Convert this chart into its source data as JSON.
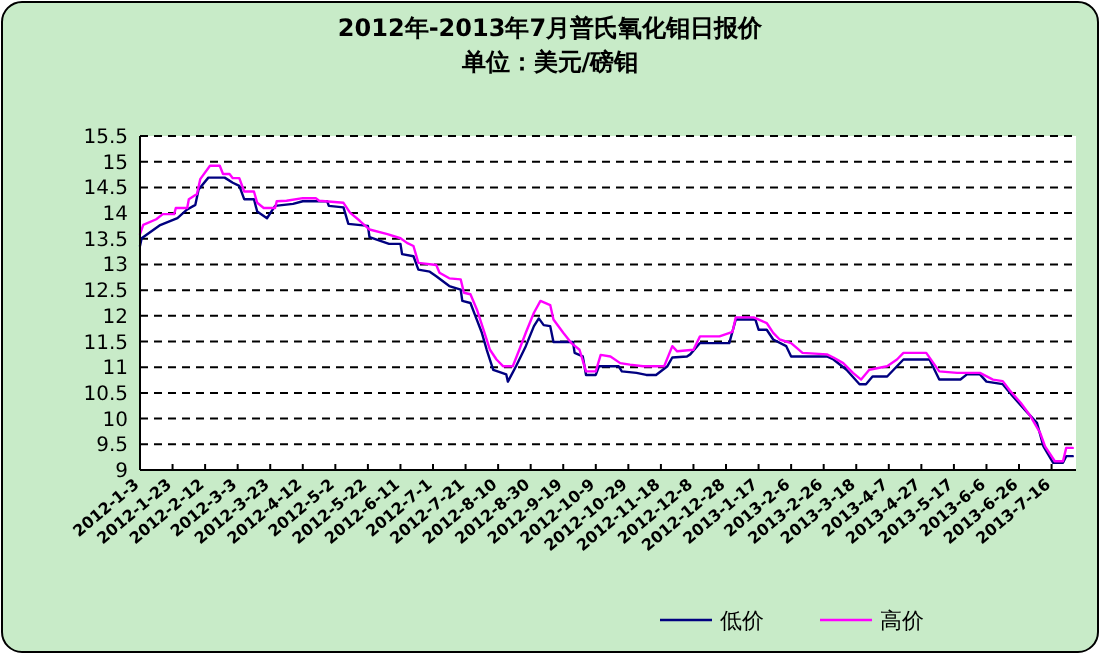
{
  "chart_data": {
    "type": "line",
    "title": "2012年-2013年7月普氏氧化钼日报价",
    "subtitle": "单位：美元/磅钼",
    "xlim": [
      "2012-01-03",
      "2013-07-31"
    ],
    "xticks": [
      {
        "value": "2012-01-03",
        "label": "2012-1-3"
      },
      {
        "value": "2012-01-23",
        "label": "2012-1-23"
      },
      {
        "value": "2012-02-12",
        "label": "2012-2-12"
      },
      {
        "value": "2012-03-03",
        "label": "2012-3-3"
      },
      {
        "value": "2012-03-23",
        "label": "2012-3-23"
      },
      {
        "value": "2012-04-12",
        "label": "2012-4-12"
      },
      {
        "value": "2012-05-02",
        "label": "2012-5-2"
      },
      {
        "value": "2012-05-22",
        "label": "2012-5-22"
      },
      {
        "value": "2012-06-11",
        "label": "2012-6-11"
      },
      {
        "value": "2012-07-01",
        "label": "2012-7-1"
      },
      {
        "value": "2012-07-21",
        "label": "2012-7-21"
      },
      {
        "value": "2012-08-10",
        "label": "2012-8-10"
      },
      {
        "value": "2012-08-30",
        "label": "2012-8-30"
      },
      {
        "value": "2012-09-19",
        "label": "2012-9-19"
      },
      {
        "value": "2012-10-09",
        "label": "2012-10-9"
      },
      {
        "value": "2012-10-29",
        "label": "2012-10-29"
      },
      {
        "value": "2012-11-18",
        "label": "2012-11-18"
      },
      {
        "value": "2012-12-08",
        "label": "2012-12-8"
      },
      {
        "value": "2012-12-28",
        "label": "2012-12-28"
      },
      {
        "value": "2013-01-17",
        "label": "2013-1-17"
      },
      {
        "value": "2013-02-06",
        "label": "2013-2-6"
      },
      {
        "value": "2013-02-26",
        "label": "2013-2-26"
      },
      {
        "value": "2013-03-18",
        "label": "2013-3-18"
      },
      {
        "value": "2013-04-07",
        "label": "2013-4-7"
      },
      {
        "value": "2013-04-27",
        "label": "2013-4-27"
      },
      {
        "value": "2013-05-17",
        "label": "2013-5-17"
      },
      {
        "value": "2013-06-06",
        "label": "2013-6-6"
      },
      {
        "value": "2013-06-26",
        "label": "2013-6-26"
      },
      {
        "value": "2013-07-16",
        "label": "2013-7-16"
      }
    ],
    "ylim": [
      9,
      15.5
    ],
    "yticks": [
      9,
      9.5,
      10,
      10.5,
      11,
      11.5,
      12,
      12.5,
      13,
      13.5,
      14,
      14.5,
      15,
      15.5
    ],
    "grid": "y",
    "legend": "bottom",
    "marker": "none",
    "line_style": "solid",
    "series": [
      {
        "name": "低价",
        "color": "#000080",
        "x": [
          "2012-01-03",
          "2012-01-04",
          "2012-01-15",
          "2012-01-26",
          "2012-02-01",
          "2012-02-06",
          "2012-02-08",
          "2012-02-14",
          "2012-02-24",
          "2012-02-29",
          "2012-03-04",
          "2012-03-07",
          "2012-03-13",
          "2012-03-15",
          "2012-03-21",
          "2012-03-26",
          "2012-04-06",
          "2012-04-12",
          "2012-04-27",
          "2012-04-28",
          "2012-05-07",
          "2012-05-10",
          "2012-05-22",
          "2012-05-23",
          "2012-06-04",
          "2012-06-11",
          "2012-06-12",
          "2012-06-19",
          "2012-06-22",
          "2012-06-29",
          "2012-07-03",
          "2012-07-11",
          "2012-07-18",
          "2012-07-19",
          "2012-07-24",
          "2012-07-27",
          "2012-07-31",
          "2012-08-03",
          "2012-08-07",
          "2012-08-15",
          "2012-08-16",
          "2012-08-21",
          "2012-08-27",
          "2012-09-01",
          "2012-09-04",
          "2012-09-07",
          "2012-09-11",
          "2012-09-13",
          "2012-09-25",
          "2012-09-26",
          "2012-10-01",
          "2012-10-03",
          "2012-10-09",
          "2012-10-11",
          "2012-10-23",
          "2012-10-25",
          "2012-11-03",
          "2012-11-09",
          "2012-11-15",
          "2012-11-22",
          "2012-11-25",
          "2012-12-04",
          "2012-12-06",
          "2012-12-12",
          "2012-12-30",
          "2013-01-03",
          "2013-01-15",
          "2013-01-17",
          "2013-01-22",
          "2013-01-26",
          "2013-02-03",
          "2013-02-06",
          "2013-02-28",
          "2013-03-04",
          "2013-03-12",
          "2013-03-20",
          "2013-03-24",
          "2013-03-28",
          "2013-04-06",
          "2013-04-12",
          "2013-04-16",
          "2013-05-02",
          "2013-05-08",
          "2013-05-21",
          "2013-05-25",
          "2013-06-02",
          "2013-06-06",
          "2013-06-16",
          "2013-06-22",
          "2013-07-01",
          "2013-07-07",
          "2013-07-11",
          "2013-07-17",
          "2013-07-23",
          "2013-07-25",
          "2013-07-29"
        ],
        "values": [
          13.36,
          13.51,
          13.76,
          13.9,
          14.07,
          14.16,
          14.46,
          14.69,
          14.69,
          14.59,
          14.53,
          14.27,
          14.27,
          14.03,
          13.9,
          14.14,
          14.18,
          14.23,
          14.23,
          14.14,
          14.11,
          13.79,
          13.75,
          13.53,
          13.4,
          13.4,
          13.2,
          13.16,
          12.9,
          12.86,
          12.77,
          12.58,
          12.51,
          12.29,
          12.25,
          12.0,
          11.67,
          11.34,
          10.95,
          10.86,
          10.72,
          11.02,
          11.41,
          11.8,
          11.95,
          11.82,
          11.8,
          11.49,
          11.49,
          11.28,
          11.21,
          10.85,
          10.85,
          11.02,
          11.02,
          10.92,
          10.89,
          10.85,
          10.85,
          11.02,
          11.19,
          11.21,
          11.25,
          11.47,
          11.47,
          11.93,
          11.93,
          11.73,
          11.73,
          11.54,
          11.41,
          11.21,
          11.21,
          11.15,
          10.95,
          10.67,
          10.67,
          10.82,
          10.82,
          11.02,
          11.15,
          11.15,
          10.76,
          10.76,
          10.86,
          10.86,
          10.72,
          10.67,
          10.44,
          10.12,
          9.92,
          9.46,
          9.14,
          9.14,
          9.27,
          9.27
        ]
      },
      {
        "name": "高价",
        "color": "#ff00ff",
        "x": [
          "2012-01-03",
          "2012-01-05",
          "2012-01-13",
          "2012-01-17",
          "2012-01-24",
          "2012-01-25",
          "2012-02-01",
          "2012-02-02",
          "2012-02-07",
          "2012-02-09",
          "2012-02-15",
          "2012-02-21",
          "2012-02-23",
          "2012-02-27",
          "2012-02-29",
          "2012-03-04",
          "2012-03-07",
          "2012-03-13",
          "2012-03-15",
          "2012-03-19",
          "2012-03-26",
          "2012-03-27",
          "2012-04-02",
          "2012-04-12",
          "2012-04-20",
          "2012-04-22",
          "2012-05-07",
          "2012-05-11",
          "2012-05-17",
          "2012-05-23",
          "2012-06-03",
          "2012-06-11",
          "2012-06-15",
          "2012-06-19",
          "2012-06-22",
          "2012-07-03",
          "2012-07-05",
          "2012-07-11",
          "2012-07-18",
          "2012-07-20",
          "2012-07-24",
          "2012-07-28",
          "2012-08-01",
          "2012-08-05",
          "2012-08-09",
          "2012-08-13",
          "2012-08-19",
          "2012-08-23",
          "2012-08-27",
          "2012-09-01",
          "2012-09-05",
          "2012-09-11",
          "2012-09-13",
          "2012-09-19",
          "2012-09-24",
          "2012-09-29",
          "2012-10-03",
          "2012-10-09",
          "2012-10-12",
          "2012-10-18",
          "2012-10-24",
          "2012-10-30",
          "2012-11-07",
          "2012-11-20",
          "2012-11-25",
          "2012-11-28",
          "2012-12-08",
          "2012-12-12",
          "2012-12-24",
          "2013-01-01",
          "2013-01-03",
          "2013-01-14",
          "2013-01-22",
          "2013-01-26",
          "2013-01-30",
          "2013-02-06",
          "2013-02-13",
          "2013-02-28",
          "2013-03-04",
          "2013-03-10",
          "2013-03-16",
          "2013-03-21",
          "2013-03-26",
          "2013-04-06",
          "2013-04-12",
          "2013-04-16",
          "2013-04-30",
          "2013-05-08",
          "2013-05-19",
          "2013-06-02",
          "2013-06-10",
          "2013-06-16",
          "2013-06-20",
          "2013-06-27",
          "2013-07-03",
          "2013-07-09",
          "2013-07-12",
          "2013-07-18",
          "2013-07-23",
          "2013-07-25",
          "2013-07-29"
        ],
        "values": [
          13.59,
          13.77,
          13.88,
          13.98,
          13.98,
          14.1,
          14.1,
          14.27,
          14.37,
          14.66,
          14.92,
          14.92,
          14.76,
          14.76,
          14.68,
          14.68,
          14.42,
          14.42,
          14.2,
          14.1,
          14.1,
          14.23,
          14.24,
          14.29,
          14.29,
          14.24,
          14.2,
          14.01,
          13.85,
          13.68,
          13.59,
          13.51,
          13.42,
          13.36,
          13.03,
          12.99,
          12.84,
          12.73,
          12.71,
          12.45,
          12.42,
          12.12,
          11.73,
          11.34,
          11.15,
          11.02,
          11.02,
          11.34,
          11.67,
          12.06,
          12.29,
          12.21,
          11.93,
          11.67,
          11.47,
          11.34,
          10.92,
          10.92,
          11.24,
          11.21,
          11.08,
          11.05,
          11.02,
          11.02,
          11.41,
          11.31,
          11.34,
          11.6,
          11.6,
          11.69,
          11.97,
          11.97,
          11.86,
          11.67,
          11.54,
          11.47,
          11.28,
          11.25,
          11.19,
          11.08,
          10.89,
          10.76,
          10.95,
          11.02,
          11.15,
          11.28,
          11.28,
          10.92,
          10.89,
          10.89,
          10.76,
          10.73,
          10.56,
          10.31,
          10.05,
          9.72,
          9.46,
          9.17,
          9.17,
          9.43,
          9.43
        ]
      }
    ]
  }
}
